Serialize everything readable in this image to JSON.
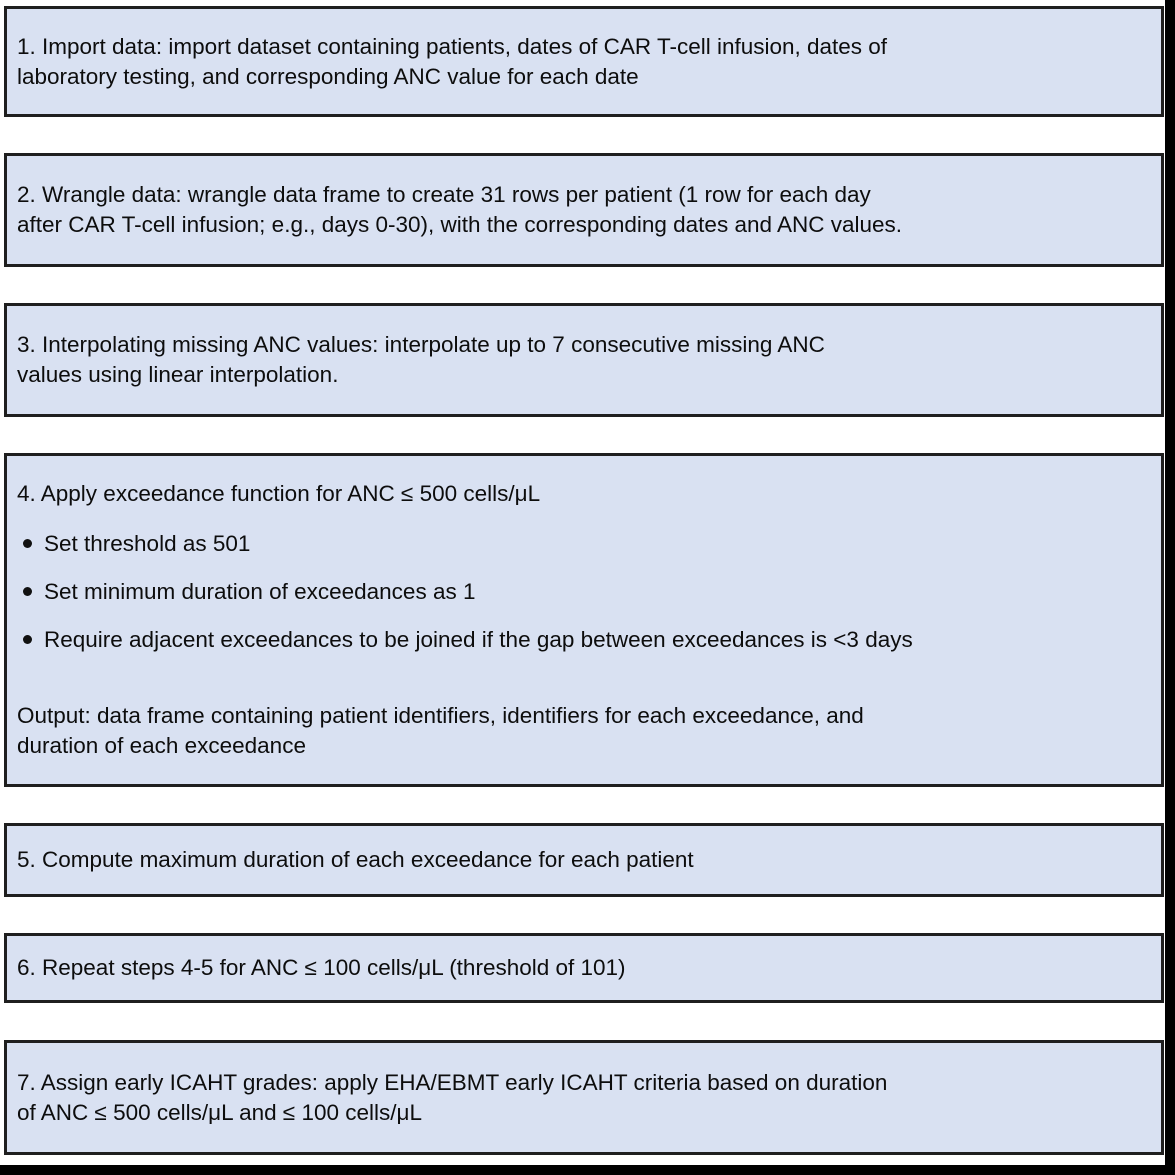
{
  "figure": {
    "background_color": "#ffffff",
    "box_fill_color": "#d9e1f2",
    "box_border_color": "#1f1f1f",
    "text_color": "#0d0d0d",
    "frame_color": "#000000"
  },
  "steps": [
    {
      "text": "1. Import data: import dataset containing patients, dates of CAR T-cell infusion, dates of\nlaboratory testing, and corresponding ANC value for each date"
    },
    {
      "text": "2. Wrangle data: wrangle data frame to create 31 rows per patient (1 row for each day\nafter CAR T-cell infusion; e.g., days 0-30), with the corresponding dates and ANC values."
    },
    {
      "text": "3. Interpolating missing ANC values: interpolate up to 7 consecutive missing ANC\nvalues using linear interpolation."
    },
    {
      "title": "4. Apply exceedance function for ANC ≤ 500 cells/μL",
      "bullets": [
        "Set threshold as 501",
        "Set minimum duration of exceedances as 1",
        "Require adjacent exceedances to be joined if the gap between exceedances is <3 days"
      ],
      "output": "Output: data frame containing patient identifiers, identifiers for each exceedance, and\nduration of each exceedance"
    },
    {
      "text": "5. Compute maximum duration of each exceedance for each patient"
    },
    {
      "text": "6. Repeat steps 4-5 for ANC ≤ 100 cells/μL (threshold of 101)"
    },
    {
      "text": "7. Assign early ICAHT grades: apply EHA/EBMT early ICAHT criteria based on duration\nof ANC ≤ 500 cells/μL and ≤ 100 cells/μL"
    }
  ]
}
